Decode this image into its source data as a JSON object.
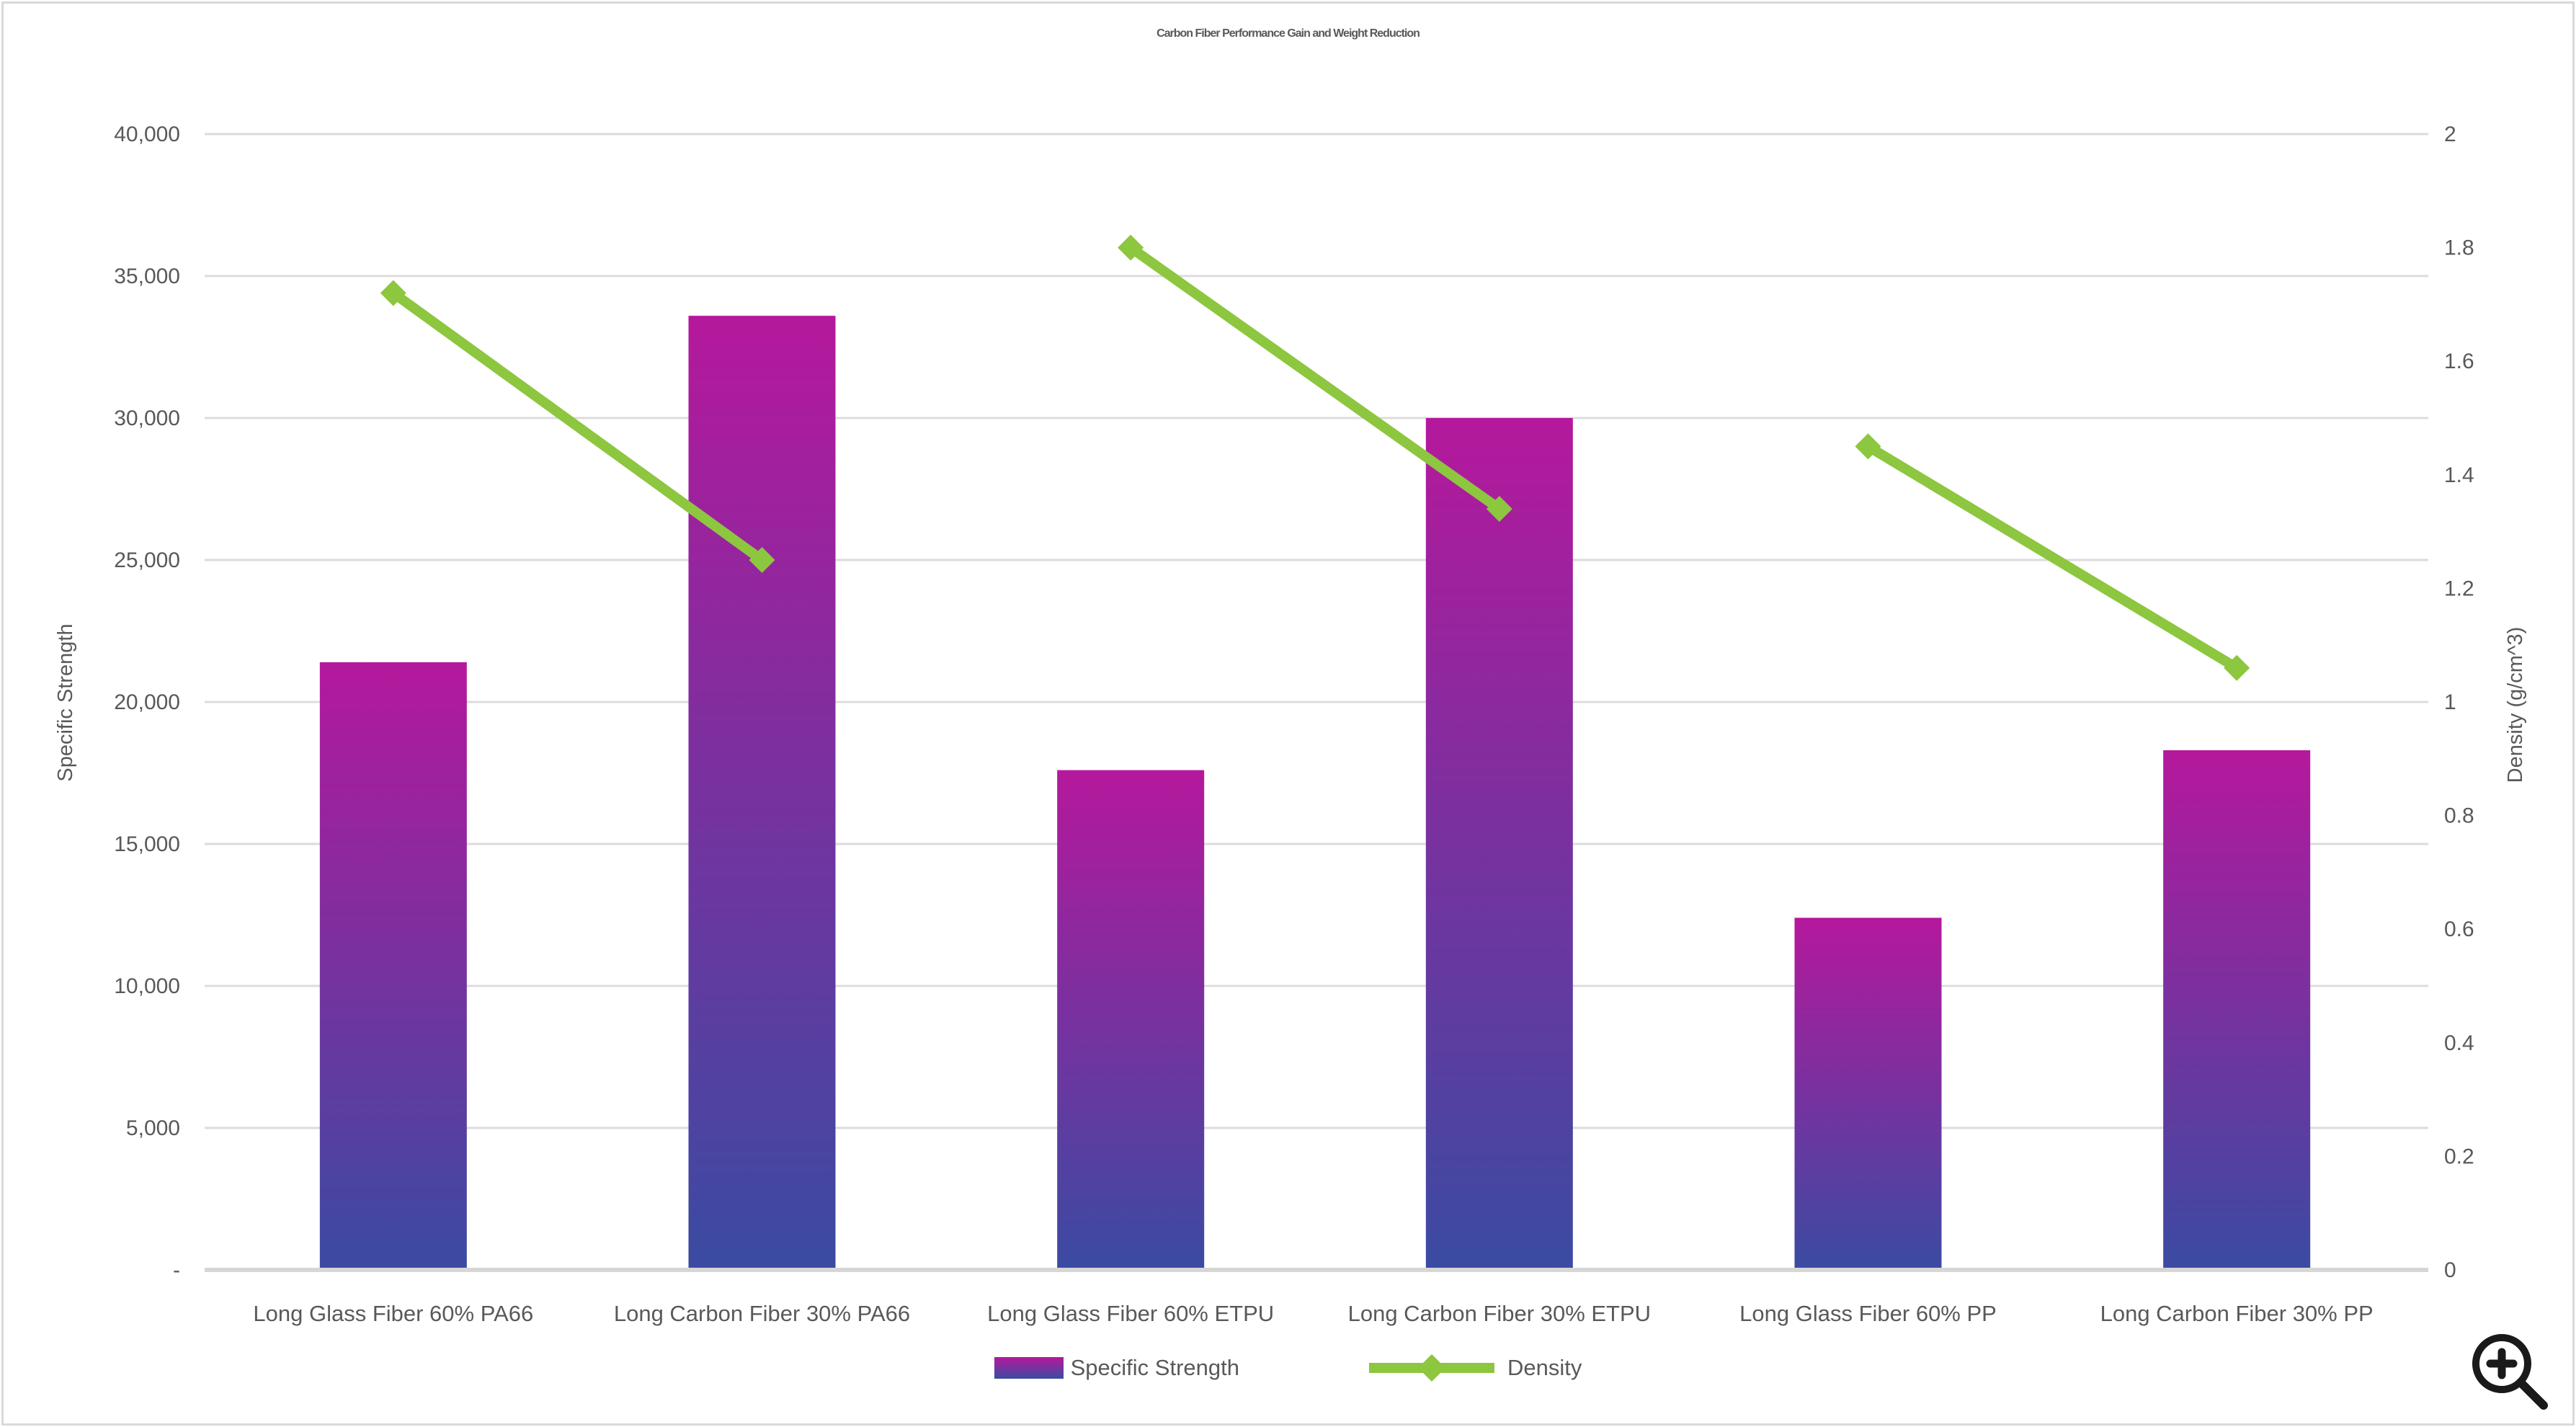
{
  "chart": {
    "title": "Carbon Fiber Performance Gain and Weight Reduction"
  },
  "chart_data": {
    "type": "combo",
    "title": "Carbon Fiber Performance Gain and Weight Reduction",
    "categories": [
      "Long Glass Fiber 60% PA66",
      "Long Carbon Fiber 30% PA66",
      "Long Glass Fiber 60% ETPU",
      "Long Carbon Fiber 30% ETPU",
      "Long Glass Fiber 60% PP",
      "Long Carbon Fiber 30% PP"
    ],
    "series": [
      {
        "name": "Specific Strength",
        "type": "bar",
        "axis": "left",
        "values": [
          21400,
          33600,
          17600,
          30000,
          12400,
          18300
        ],
        "gradient_top": "#B5189C",
        "gradient_bottom": "#3A4BA2"
      },
      {
        "name": "Density",
        "type": "line",
        "axis": "right",
        "color": "#8DC63F",
        "marker": "diamond",
        "values": [
          1.72,
          1.25,
          1.8,
          1.34,
          1.45,
          1.06
        ],
        "segments": [
          [
            0,
            1
          ],
          [
            2,
            3
          ],
          [
            4,
            5
          ]
        ]
      }
    ],
    "left_axis": {
      "title": "Specific Strength",
      "min": 0,
      "max": 40000,
      "ticks": [
        {
          "label": "40,000",
          "value": 40000
        },
        {
          "label": "35,000",
          "value": 35000
        },
        {
          "label": "30,000",
          "value": 30000
        },
        {
          "label": "25,000",
          "value": 25000
        },
        {
          "label": "20,000",
          "value": 20000
        },
        {
          "label": "15,000",
          "value": 15000
        },
        {
          "label": "10,000",
          "value": 10000
        },
        {
          "label": "5,000",
          "value": 5000
        },
        {
          "label": "-",
          "value": 0
        }
      ]
    },
    "right_axis": {
      "title": "Density (g/cm^3)",
      "min": 0,
      "max": 2,
      "ticks": [
        {
          "label": "2",
          "value": 2
        },
        {
          "label": "1.8",
          "value": 1.8
        },
        {
          "label": "1.6",
          "value": 1.6
        },
        {
          "label": "1.4",
          "value": 1.4
        },
        {
          "label": "1.2",
          "value": 1.2
        },
        {
          "label": "1",
          "value": 1
        },
        {
          "label": "0.8",
          "value": 0.8
        },
        {
          "label": "0.6",
          "value": 0.6
        },
        {
          "label": "0.4",
          "value": 0.4
        },
        {
          "label": "0.2",
          "value": 0.2
        },
        {
          "label": "0",
          "value": 0
        }
      ]
    },
    "legend_position": "bottom",
    "grid": true,
    "colors": {
      "grid": "#dcdcdc",
      "baseline": "#d6d6d6",
      "text": "#595959"
    }
  },
  "controls": {
    "zoom_button_label": "zoom-in"
  }
}
